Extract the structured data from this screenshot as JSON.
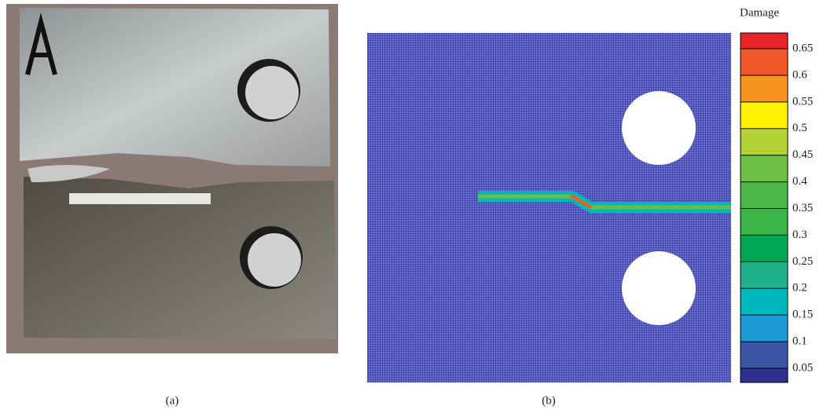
{
  "figure": {
    "panels": [
      {
        "caption": "(a)"
      },
      {
        "caption": "(b)"
      }
    ],
    "colorbar": {
      "title": "Damage",
      "labels": [
        0.65,
        0.6,
        0.55,
        0.5,
        0.45,
        0.4,
        0.35,
        0.3,
        0.25,
        0.2,
        0.15,
        0.1,
        0.05
      ],
      "colors": [
        "#e8262a",
        "#f0592a",
        "#f7941d",
        "#fff200",
        "#b5d334",
        "#6cbe45",
        "#4cb748",
        "#39b54a",
        "#00a651",
        "#1fb28a",
        "#00b7bd",
        "#1b9ad6",
        "#3b55a4",
        "#2e3192"
      ]
    }
  }
}
